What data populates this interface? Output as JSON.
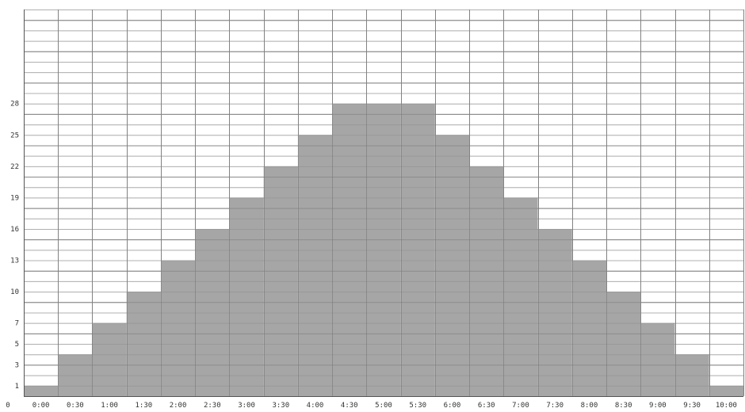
{
  "chart_data": {
    "type": "bar",
    "title": "",
    "xlabel": "",
    "ylabel": "",
    "categories": [
      "0:00",
      "0:30",
      "1:00",
      "1:30",
      "2:00",
      "2:30",
      "3:00",
      "3:30",
      "4:00",
      "4:30",
      "5:00",
      "5:30",
      "6:00",
      "6:30",
      "7:00",
      "7:30",
      "8:00",
      "8:30",
      "9:00",
      "9:30",
      "10:00"
    ],
    "x_tick_labels": [
      "0",
      "0:00",
      "0:30",
      "1:00",
      "1:30",
      "2:00",
      "2:30",
      "3:00",
      "3:30",
      "4:00",
      "4:30",
      "5:00",
      "5:30",
      "6:00",
      "6:30",
      "7:00",
      "7:30",
      "8:00",
      "8:30",
      "9:00",
      "9:30",
      "10:00"
    ],
    "values": [
      1,
      4,
      7,
      10,
      13,
      16,
      19,
      22,
      25,
      28,
      28,
      28,
      25,
      22,
      19,
      16,
      13,
      10,
      7,
      4,
      1
    ],
    "ylim": [
      0,
      37
    ],
    "y_tick_labels": [
      "1",
      "3",
      "5",
      "7",
      "10",
      "13",
      "16",
      "19",
      "22",
      "25",
      "28"
    ],
    "grid": true,
    "colors": {
      "bar": "#a6a6a6",
      "grid_major": "#8e8e8e",
      "grid_minor": "#cfcfcf",
      "background": "#ffffff"
    }
  }
}
